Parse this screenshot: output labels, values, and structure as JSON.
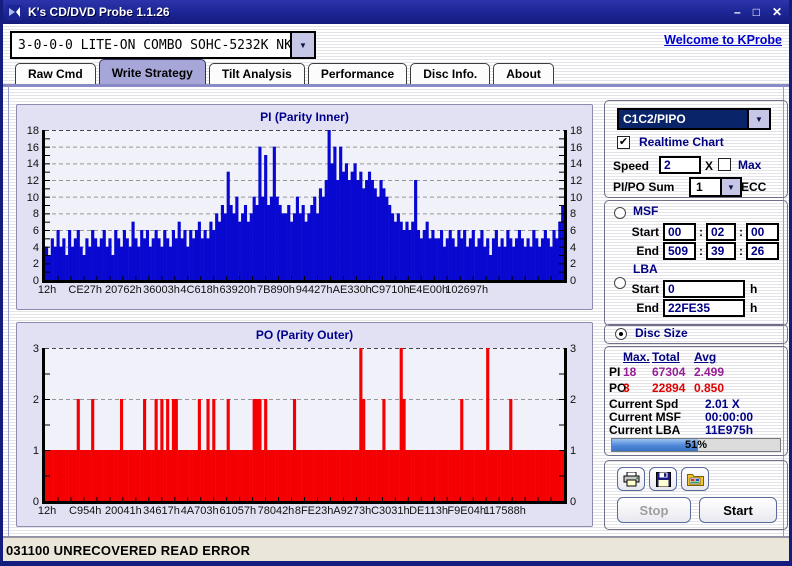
{
  "window": {
    "title": "K's CD/DVD Probe 1.1.26",
    "controls": {
      "minimize": "–",
      "maximize": "□",
      "close": "✕"
    }
  },
  "toolbar": {
    "drive_combo_value": "3-0-0-0 LITE-ON COMBO SOHC-5232K NK07",
    "link": "Welcome to KProbe"
  },
  "tabs": [
    {
      "label": "Raw Cmd",
      "active": false
    },
    {
      "label": "Write Strategy",
      "active": true
    },
    {
      "label": "Tilt Analysis",
      "active": false
    },
    {
      "label": "Performance",
      "active": false
    },
    {
      "label": "Disc Info.",
      "active": false
    },
    {
      "label": "About",
      "active": false
    }
  ],
  "right_panel": {
    "mode_combo_value": "C1C2/PIPO",
    "realtime_chart_label": "Realtime Chart",
    "realtime_chart_checked": true,
    "speed_label": "Speed",
    "speed_value": "2",
    "speed_unit": "X",
    "max_label": "Max",
    "max_checked": false,
    "sum_label": "PI/PO Sum",
    "sum_value": "1",
    "sum_unit": "ECC",
    "msf": {
      "label": "MSF",
      "selected": false,
      "start_label": "Start",
      "end_label": "End",
      "separator": ":",
      "start": [
        "00",
        "02",
        "00"
      ],
      "end": [
        "509",
        "39",
        "26"
      ]
    },
    "lba": {
      "label": "LBA",
      "selected": false,
      "start_label": "Start",
      "end_label": "End",
      "unit": "h",
      "start": "0",
      "end": "22FE35"
    },
    "disc_size": {
      "label": "Disc Size",
      "selected": true
    },
    "stats": {
      "headers": [
        "Max.",
        "Total",
        "Avg"
      ],
      "rows": [
        {
          "label": "PI",
          "max": "18",
          "total": "67304",
          "avg": "2.499"
        },
        {
          "label": "PO",
          "max": "3",
          "total": "22894",
          "avg": "0.850"
        }
      ],
      "current": [
        {
          "label": "Current Spd",
          "value": "2.01   X"
        },
        {
          "label": "Current MSF",
          "value": "00:00:00"
        },
        {
          "label": "Current LBA",
          "value": "11E975h"
        }
      ],
      "progress_percent": 51,
      "progress_label": "51%"
    },
    "buttons": {
      "print": "print-button",
      "save": "save-button",
      "export_image": "export-image-button",
      "stop_label": "Stop",
      "stop_enabled": false,
      "start_label": "Start",
      "start_enabled": true
    }
  },
  "status_bar": "031100 UNRECOVERED READ ERROR",
  "chart_data": [
    {
      "type": "bar",
      "title": "PI (Parity Inner)",
      "ylabel": "",
      "xlabel": "",
      "ylim": [
        0,
        18
      ],
      "yticks": [
        0,
        2,
        4,
        6,
        8,
        10,
        12,
        14,
        16,
        18
      ],
      "minor_tick": 1,
      "grid": "dashed",
      "bar_color": "#0808d0",
      "x_tick_labels": [
        "12h",
        "CE27h",
        "20762h",
        "36003h",
        "4C618h",
        "63920h",
        "7B890h",
        "94427h",
        "AE330h",
        "C9710h",
        "E4E00h",
        "102697h"
      ],
      "values": [
        4,
        3,
        5,
        4,
        6,
        4,
        5,
        3,
        6,
        4,
        5,
        6,
        4,
        3,
        5,
        4,
        6,
        5,
        4,
        5,
        6,
        4,
        5,
        3,
        6,
        5,
        4,
        6,
        5,
        4,
        7,
        5,
        4,
        6,
        5,
        6,
        4,
        5,
        6,
        5,
        4,
        6,
        5,
        4,
        6,
        5,
        7,
        5,
        6,
        4,
        6,
        5,
        6,
        7,
        5,
        6,
        5,
        7,
        6,
        8,
        7,
        9,
        8,
        13,
        9,
        8,
        10,
        7,
        8,
        9,
        7,
        8,
        10,
        9,
        16,
        10,
        15,
        9,
        10,
        16,
        10,
        9,
        8,
        8,
        9,
        7,
        8,
        10,
        8,
        9,
        7,
        8,
        9,
        10,
        8,
        11,
        10,
        12,
        18,
        14,
        16,
        12,
        16,
        13,
        14,
        12,
        13,
        14,
        12,
        13,
        11,
        12,
        13,
        12,
        11,
        10,
        12,
        11,
        10,
        9,
        8,
        7,
        8,
        7,
        6,
        7,
        6,
        7,
        12,
        6,
        5,
        6,
        7,
        5,
        6,
        5,
        5,
        6,
        4,
        5,
        6,
        5,
        4,
        6,
        5,
        6,
        4,
        5,
        6,
        4,
        5,
        6,
        4,
        5,
        3,
        5,
        6,
        4,
        5,
        4,
        6,
        5,
        4,
        5,
        6,
        5,
        4,
        5,
        4,
        6,
        5,
        4,
        5,
        6,
        5,
        4,
        6,
        5,
        7,
        9
      ]
    },
    {
      "type": "bar",
      "title": "PO (Parity Outer)",
      "ylabel": "",
      "xlabel": "",
      "ylim": [
        0,
        3
      ],
      "yticks": [
        0,
        1,
        2,
        3
      ],
      "minor_tick": 0.5,
      "grid": "dashed",
      "bar_color": "#f50000",
      "x_tick_labels": [
        "12h",
        "C954h",
        "20041h",
        "34617h",
        "4A703h",
        "61057h",
        "78042h",
        "8FE23h",
        "A9273h",
        "C3031h",
        "DE113h",
        "F9E04h",
        "117588h"
      ],
      "values_spec": {
        "n": 180,
        "baseline": 1,
        "spikes": [
          [
            11,
            2
          ],
          [
            16,
            2
          ],
          [
            26,
            2
          ],
          [
            34,
            2
          ],
          [
            38,
            2
          ],
          [
            40,
            2
          ],
          [
            42,
            2
          ],
          [
            44,
            2
          ],
          [
            45,
            2
          ],
          [
            53,
            2
          ],
          [
            56,
            2
          ],
          [
            58,
            2
          ],
          [
            63,
            2
          ],
          [
            72,
            2
          ],
          [
            73,
            2
          ],
          [
            74,
            2
          ],
          [
            76,
            2
          ],
          [
            86,
            2
          ],
          [
            109,
            3
          ],
          [
            110,
            2
          ],
          [
            117,
            2
          ],
          [
            123,
            3
          ],
          [
            124,
            2
          ],
          [
            144,
            2
          ],
          [
            153,
            3
          ],
          [
            161,
            2
          ]
        ]
      }
    }
  ]
}
